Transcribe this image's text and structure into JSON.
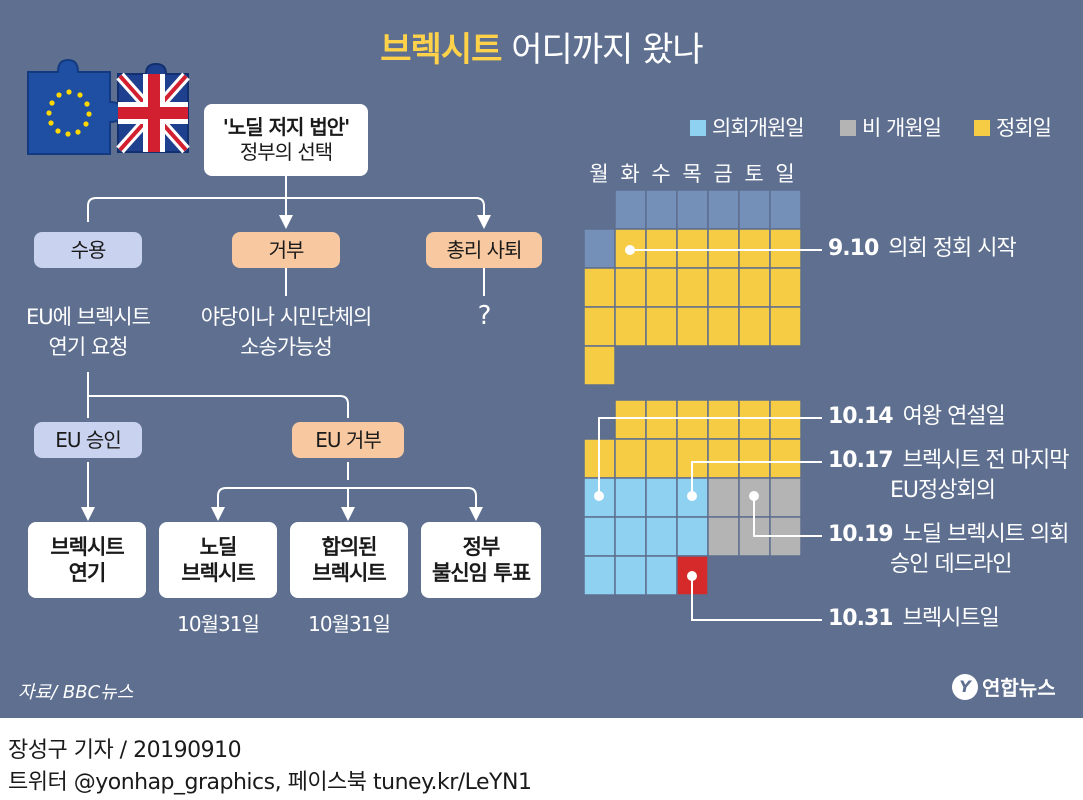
{
  "title": {
    "bold": "브렉시트",
    "rest": "어디까지 왔나"
  },
  "tree": {
    "top_line1": "'노딜 저지 법안'",
    "top_line2": "정부의 선택",
    "options": [
      {
        "label": "수용",
        "desc_line1": "EU에 브렉시트",
        "desc_line2": "연기 요청"
      },
      {
        "label": "거부",
        "desc_line1": "야당이나 시민단체의",
        "desc_line2": "소송가능성"
      },
      {
        "label": "총리 사퇴",
        "desc_line1": "?",
        "desc_line2": ""
      }
    ],
    "eu_approve": "EU 승인",
    "eu_reject": "EU 거부",
    "outcomes": [
      {
        "line1": "브렉시트",
        "line2": "연기",
        "date": ""
      },
      {
        "line1": "노딜",
        "line2": "브렉시트",
        "date": "10월31일"
      },
      {
        "line1": "합의된",
        "line2": "브렉시트",
        "date": "10월31일"
      },
      {
        "line1": "정부",
        "line2": "불신임 투표",
        "date": ""
      }
    ]
  },
  "calendar": {
    "legend": [
      {
        "label": "의회개원일",
        "color": "#8fd1f0"
      },
      {
        "label": "비 개원일",
        "color": "#b4b4b4"
      },
      {
        "label": "정회일",
        "color": "#f7cc45"
      }
    ],
    "weekdays": [
      "월",
      "화",
      "수",
      "목",
      "금",
      "토",
      "일"
    ],
    "colors": {
      "past": "#7590b8",
      "open": "#8fd1f0",
      "closed": "#b4b4b4",
      "prorogued": "#f7cc45",
      "brexit": "#d62a2a"
    },
    "september_rows": [
      [
        "",
        "past",
        "past",
        "past",
        "past",
        "past",
        "past"
      ],
      [
        "past",
        "prorogued",
        "prorogued",
        "prorogued",
        "prorogued",
        "prorogued",
        "prorogued"
      ],
      [
        "prorogued",
        "prorogued",
        "prorogued",
        "prorogued",
        "prorogued",
        "prorogued",
        "prorogued"
      ],
      [
        "prorogued",
        "prorogued",
        "prorogued",
        "prorogued",
        "prorogued",
        "prorogued",
        "prorogued"
      ],
      [
        "prorogued",
        "",
        "",
        "",
        "",
        "",
        ""
      ]
    ],
    "october_rows": [
      [
        "",
        "prorogued",
        "prorogued",
        "prorogued",
        "prorogued",
        "prorogued",
        "prorogued"
      ],
      [
        "prorogued",
        "prorogued",
        "prorogued",
        "prorogued",
        "prorogued",
        "prorogued",
        "prorogued"
      ],
      [
        "open",
        "open",
        "open",
        "open",
        "closed",
        "closed",
        "closed"
      ],
      [
        "open",
        "open",
        "open",
        "open",
        "closed",
        "closed",
        "closed"
      ],
      [
        "open",
        "open",
        "open",
        "brexit",
        "",
        "",
        ""
      ]
    ],
    "annotations": [
      {
        "date": "9.10",
        "line1": "의회 정회 시작",
        "line2": ""
      },
      {
        "date": "10.14",
        "line1": "여왕 연설일",
        "line2": ""
      },
      {
        "date": "10.17",
        "line1": "브렉시트 전 마지막",
        "line2": "EU정상회의"
      },
      {
        "date": "10.19",
        "line1": "노딜 브렉시트 의회",
        "line2": "승인 데드라인"
      },
      {
        "date": "10.31",
        "line1": "브렉시트일",
        "line2": ""
      }
    ]
  },
  "source": "자료/ BBC뉴스",
  "logo": "연합뉴스",
  "footer": {
    "line1": "장성구 기자 / 20190910",
    "line2": "트위터 @yonhap_graphics, 페이스북 tuney.kr/LeYN1"
  }
}
